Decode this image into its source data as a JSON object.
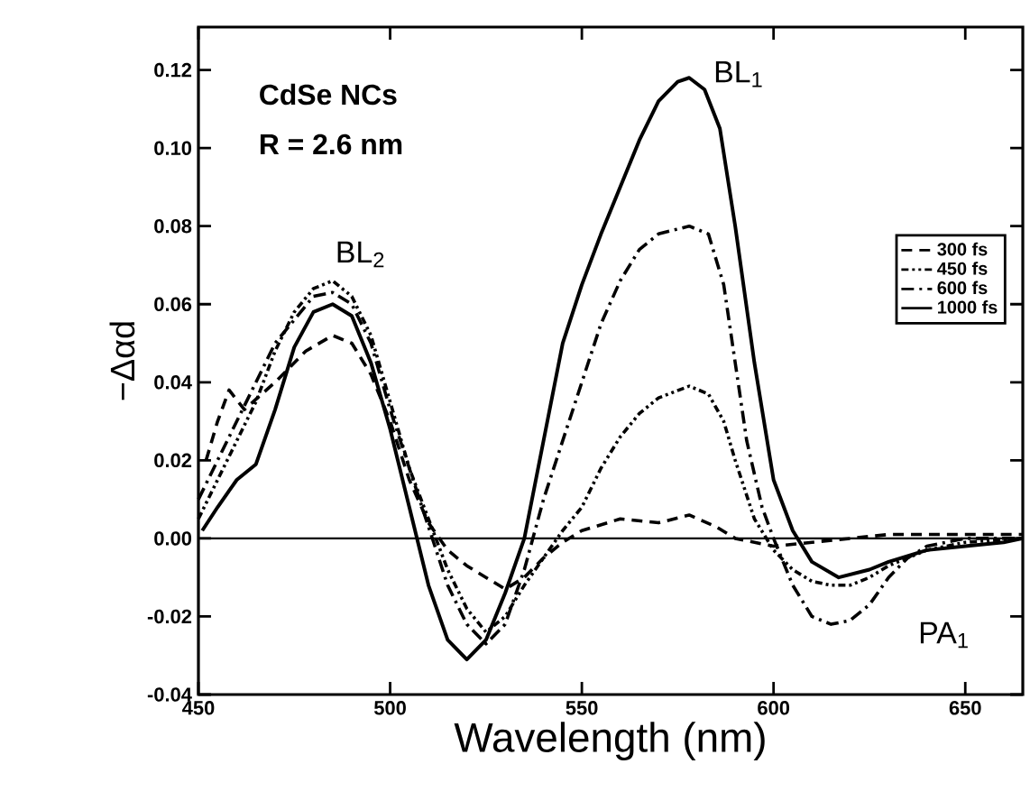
{
  "chart_data": {
    "type": "line",
    "xlabel": "Wavelength (nm)",
    "ylabel": "−Δαd",
    "xlim": [
      450,
      665
    ],
    "ylim": [
      -0.04,
      0.131
    ],
    "xticks": [
      450,
      500,
      550,
      600,
      650
    ],
    "yticks": [
      {
        "value": -0.04,
        "label": "-0.04"
      },
      {
        "value": -0.02,
        "label": "-0.02"
      },
      {
        "value": 0,
        "label": "0.00"
      },
      {
        "value": 0.02,
        "label": "0.02"
      },
      {
        "value": 0.04,
        "label": "0.04"
      },
      {
        "value": 0.06,
        "label": "0.06"
      },
      {
        "value": 0.08,
        "label": "0.08"
      },
      {
        "value": 0.1,
        "label": "0.10"
      },
      {
        "value": 0.12,
        "label": "0.12"
      }
    ],
    "grid": false,
    "legend": "right",
    "marker": "none",
    "ref_lines": [
      {
        "axis": "y",
        "value": 0,
        "color": "#000000"
      }
    ],
    "annotations": [
      "CdSe NCs",
      "R = 2.6 nm",
      {
        "text": "BL$_{2}$",
        "x": 485,
        "y": 0.066
      },
      {
        "text": "BL$_{1}$",
        "x": 578,
        "y": 0.118
      },
      {
        "text": "PA$_{1}$",
        "x": 615,
        "y": -0.022
      }
    ],
    "series": [
      {
        "name": "300 fs",
        "color": "#000000",
        "line_style": "dashed",
        "x": [
          452,
          455,
          458,
          462,
          470,
          478,
          485,
          490,
          495,
          500,
          505,
          510,
          515,
          520,
          525,
          530,
          535,
          540,
          545,
          550,
          560,
          570,
          578,
          585,
          590,
          600,
          610,
          630,
          650,
          665
        ],
        "values": [
          0.02,
          0.03,
          0.038,
          0.033,
          0.04,
          0.048,
          0.052,
          0.05,
          0.042,
          0.03,
          0.015,
          0.004,
          -0.003,
          -0.007,
          -0.01,
          -0.013,
          -0.01,
          -0.005,
          -0.001,
          0.002,
          0.005,
          0.004,
          0.006,
          0.003,
          0.0,
          -0.002,
          -0.001,
          0.001,
          0.001,
          0.001
        ]
      },
      {
        "name": "450 fs",
        "color": "#000000",
        "line_style": "dashdotdot",
        "x": [
          450,
          455,
          460,
          465,
          470,
          475,
          480,
          485,
          490,
          495,
          500,
          505,
          510,
          515,
          520,
          525,
          530,
          535,
          540,
          545,
          550,
          555,
          560,
          565,
          570,
          578,
          583,
          587,
          590,
          595,
          600,
          605,
          610,
          615,
          620,
          625,
          630,
          640,
          650,
          665
        ],
        "values": [
          0.005,
          0.015,
          0.025,
          0.035,
          0.048,
          0.058,
          0.064,
          0.066,
          0.062,
          0.052,
          0.035,
          0.018,
          0.005,
          -0.008,
          -0.018,
          -0.024,
          -0.02,
          -0.012,
          -0.005,
          0.002,
          0.008,
          0.018,
          0.026,
          0.032,
          0.036,
          0.039,
          0.037,
          0.03,
          0.02,
          0.005,
          -0.003,
          -0.008,
          -0.011,
          -0.012,
          -0.012,
          -0.01,
          -0.007,
          -0.003,
          -0.001,
          0.0
        ]
      },
      {
        "name": "600 fs",
        "color": "#000000",
        "line_style": "dashdot",
        "x": [
          450,
          455,
          460,
          470,
          480,
          485,
          490,
          495,
          500,
          505,
          510,
          515,
          520,
          525,
          530,
          535,
          540,
          545,
          550,
          555,
          560,
          565,
          570,
          578,
          583,
          587,
          590,
          593,
          597,
          600,
          605,
          610,
          615,
          620,
          625,
          630,
          635,
          640,
          650,
          665
        ],
        "values": [
          0.01,
          0.02,
          0.03,
          0.05,
          0.062,
          0.063,
          0.06,
          0.05,
          0.033,
          0.018,
          0.003,
          -0.012,
          -0.022,
          -0.027,
          -0.022,
          -0.008,
          0.01,
          0.025,
          0.04,
          0.055,
          0.066,
          0.074,
          0.078,
          0.08,
          0.078,
          0.065,
          0.045,
          0.025,
          0.008,
          0.0,
          -0.012,
          -0.02,
          -0.022,
          -0.021,
          -0.017,
          -0.01,
          -0.005,
          -0.002,
          0.0,
          0.0
        ]
      },
      {
        "name": "1000 fs",
        "color": "#000000",
        "line_style": "solid",
        "x": [
          451,
          455,
          460,
          465,
          470,
          475,
          480,
          485,
          490,
          495,
          500,
          505,
          510,
          515,
          520,
          525,
          530,
          535,
          540,
          545,
          550,
          555,
          560,
          565,
          570,
          575,
          578,
          582,
          586,
          590,
          595,
          600,
          605,
          610,
          617,
          625,
          630,
          640,
          650,
          660,
          665
        ],
        "values": [
          0.002,
          0.008,
          0.015,
          0.019,
          0.033,
          0.049,
          0.058,
          0.06,
          0.057,
          0.045,
          0.028,
          0.008,
          -0.012,
          -0.026,
          -0.031,
          -0.026,
          -0.014,
          0.0,
          0.025,
          0.05,
          0.065,
          0.078,
          0.09,
          0.102,
          0.112,
          0.117,
          0.118,
          0.115,
          0.105,
          0.08,
          0.045,
          0.015,
          0.002,
          -0.006,
          -0.01,
          -0.008,
          -0.006,
          -0.003,
          -0.002,
          -0.001,
          0.0
        ]
      }
    ]
  }
}
